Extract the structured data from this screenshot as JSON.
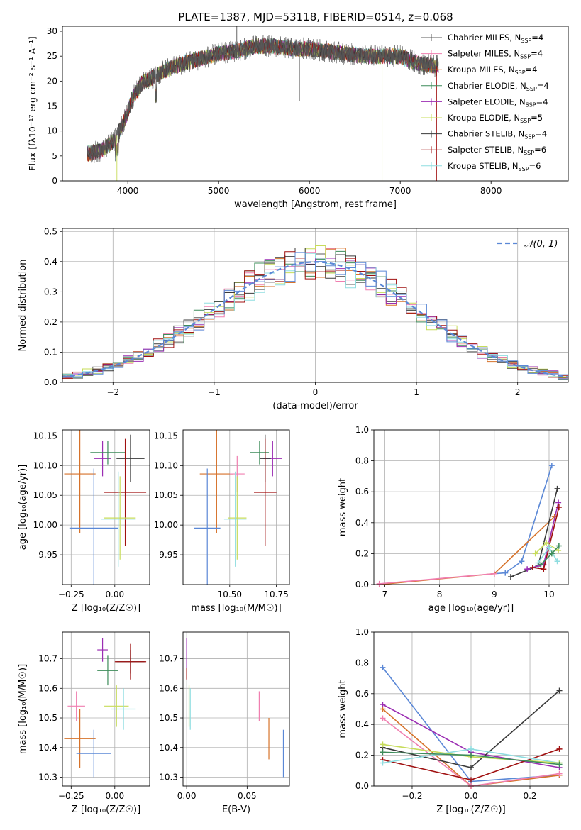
{
  "figure": {
    "title": "PLATE=1387, MJD=53118, FIBERID=0514, z=0.068"
  },
  "colors": {
    "chab_miles": "#5b5b5b",
    "salp_miles": "#f07fb0",
    "krou_miles": "#d6722a",
    "chab_elodie": "#3d8c5a",
    "salp_elodie": "#9b2db3",
    "krou_elodie": "#c7dc5a",
    "chab_stelib": "#3a3a3a",
    "salp_stelib": "#a01010",
    "krou_stelib": "#8fdde0",
    "blue": "#5b88d6",
    "grid": "#b0b0b0"
  },
  "chart_data": [
    {
      "id": "spectrum",
      "type": "line",
      "xlabel": "wavelength [Angstrom, rest frame]",
      "ylabel": "Flux [fλ10⁻¹⁷ erg cm⁻² s⁻¹ A⁻¹]",
      "xlim": [
        3280,
        8850
      ],
      "ylim": [
        0,
        31
      ],
      "xticks": [
        4000,
        5000,
        6000,
        7000,
        8000
      ],
      "yticks": [
        0,
        5,
        10,
        15,
        20,
        25,
        30
      ],
      "grid": false,
      "legend_position": "top-right",
      "continuum": {
        "x": [
          3550,
          3700,
          3850,
          3950,
          4050,
          4150,
          4300,
          4450,
          4600,
          4800,
          5000,
          5200,
          5400,
          5600,
          5800,
          6000,
          6200,
          6400,
          6600,
          6800,
          7000,
          7200,
          7400
        ],
        "y": [
          5.5,
          6,
          8,
          11.5,
          16.5,
          19.5,
          21,
          22.5,
          23.5,
          24.5,
          25.5,
          26,
          27,
          27,
          26.5,
          26.5,
          26,
          25.5,
          25,
          25,
          25,
          23.5,
          23
        ]
      },
      "series": [
        {
          "name": "Chabrier MILES, N_SSP=4",
          "label_main": "Chabrier MILES, N",
          "label_sub": "SSP",
          "label_end": "=4",
          "color_key": "chab_miles"
        },
        {
          "name": "Salpeter MILES, N_SSP=4",
          "label_main": "Salpeter MILES, N",
          "label_sub": "SSP",
          "label_end": "=4",
          "color_key": "salp_miles"
        },
        {
          "name": "Kroupa MILES, N_SSP=4",
          "label_main": "Kroupa MILES, N",
          "label_sub": "SSP",
          "label_end": "=4",
          "color_key": "krou_miles"
        },
        {
          "name": "Chabrier ELODIE, N_SSP=4",
          "label_main": "Chabrier ELODIE, N",
          "label_sub": "SSP",
          "label_end": "=4",
          "color_key": "chab_elodie"
        },
        {
          "name": "Salpeter ELODIE, N_SSP=4",
          "label_main": "Salpeter ELODIE, N",
          "label_sub": "SSP",
          "label_end": "=4",
          "color_key": "salp_elodie"
        },
        {
          "name": "Kroupa ELODIE, N_SSP=5",
          "label_main": "Kroupa ELODIE, N",
          "label_sub": "SSP",
          "label_end": "=5",
          "color_key": "krou_elodie"
        },
        {
          "name": "Chabrier STELIB, N_SSP=4",
          "label_main": "Chabrier STELIB, N",
          "label_sub": "SSP",
          "label_end": "=4",
          "color_key": "chab_stelib"
        },
        {
          "name": "Salpeter STELIB, N_SSP=6",
          "label_main": "Salpeter STELIB, N",
          "label_sub": "SSP",
          "label_end": "=6",
          "color_key": "salp_stelib"
        },
        {
          "name": "Kroupa STELIB, N_SSP=6",
          "label_main": "Kroupa STELIB, N",
          "label_sub": "SSP",
          "label_end": "=6",
          "color_key": "krou_stelib"
        }
      ]
    },
    {
      "id": "residuals",
      "type": "line",
      "xlabel": "(data-model)/error",
      "ylabel": "Normed distribution",
      "xlim": [
        -2.5,
        2.5
      ],
      "ylim": [
        0,
        0.51
      ],
      "xticks": [
        -2,
        -1,
        0,
        1,
        2
      ],
      "yticks": [
        0.0,
        0.1,
        0.2,
        0.3,
        0.4,
        0.5
      ],
      "grid": true,
      "legend_position": "top-right",
      "normal_label": "𝒩(0, 1)",
      "bin_width": 0.1
    },
    {
      "id": "age_vs_Z",
      "type": "scatter",
      "xlabel": "Z [log₁₀(Z/Z☉)]",
      "ylabel": "age  [log₁₀(age/yr)]",
      "xlim": [
        -0.3,
        0.2
      ],
      "ylim": [
        9.9,
        10.16
      ],
      "xticks": [
        -0.25,
        0.0
      ],
      "yticks": [
        9.95,
        10.0,
        10.05,
        10.1,
        10.15
      ],
      "grid": true,
      "points": [
        {
          "color_key": "krou_miles",
          "x": -0.2,
          "xerr": 0.09,
          "y": 10.086,
          "yerr": 0.1
        },
        {
          "color_key": "salp_elodie",
          "x": -0.07,
          "xerr": 0.05,
          "y": 10.112,
          "yerr": 0.03
        },
        {
          "color_key": "chab_elodie",
          "x": -0.04,
          "xerr": 0.1,
          "y": 10.122,
          "yerr": 0.02
        },
        {
          "color_key": "chab_stelib",
          "x": 0.09,
          "xerr": 0.08,
          "y": 10.112,
          "yerr": 0.04
        },
        {
          "color_key": "salp_stelib",
          "x": 0.06,
          "xerr": 0.12,
          "y": 10.055,
          "yerr": 0.09
        },
        {
          "color_key": "krou_elodie",
          "x": 0.03,
          "xerr": 0.09,
          "y": 10.012,
          "yerr": 0.07
        },
        {
          "color_key": "krou_stelib",
          "x": 0.02,
          "xerr": 0.1,
          "y": 10.01,
          "yerr": 0.08
        },
        {
          "color_key": "blue",
          "x": -0.12,
          "xerr": 0.14,
          "y": 9.995,
          "yerr": 0.1
        }
      ]
    },
    {
      "id": "age_vs_mass",
      "type": "scatter",
      "xlabel": "mass [log₁₀(M/M☉)]",
      "ylabel": "",
      "xlim": [
        10.25,
        10.82
      ],
      "ylim": [
        9.9,
        10.16
      ],
      "xticks": [
        10.5,
        10.75
      ],
      "yticks": [
        9.95,
        10.0,
        10.05,
        10.1,
        10.15
      ],
      "grid": true,
      "points": [
        {
          "color_key": "krou_miles",
          "x": 10.43,
          "xerr": 0.09,
          "y": 10.086,
          "yerr": 0.1
        },
        {
          "color_key": "salp_miles",
          "x": 10.54,
          "xerr": 0.04,
          "y": 10.086,
          "yerr": 0.03
        },
        {
          "color_key": "salp_elodie",
          "x": 10.73,
          "xerr": 0.05,
          "y": 10.112,
          "yerr": 0.03
        },
        {
          "color_key": "chab_elodie",
          "x": 10.66,
          "xerr": 0.05,
          "y": 10.122,
          "yerr": 0.02
        },
        {
          "color_key": "chab_stelib",
          "x": 10.69,
          "xerr": 0.03,
          "y": 10.112,
          "yerr": 0.04
        },
        {
          "color_key": "salp_stelib",
          "x": 10.69,
          "xerr": 0.06,
          "y": 10.055,
          "yerr": 0.09
        },
        {
          "color_key": "krou_elodie",
          "x": 10.54,
          "xerr": 0.05,
          "y": 10.012,
          "yerr": 0.07
        },
        {
          "color_key": "krou_stelib",
          "x": 10.53,
          "xerr": 0.06,
          "y": 10.01,
          "yerr": 0.08
        },
        {
          "color_key": "blue",
          "x": 10.38,
          "xerr": 0.07,
          "y": 9.995,
          "yerr": 0.1
        }
      ]
    },
    {
      "id": "mass_weight_vs_age",
      "type": "line",
      "xlabel": "age  [log₁₀(age/yr)]",
      "ylabel": "mass weight",
      "xlim": [
        6.8,
        10.35
      ],
      "ylim": [
        0,
        1.0
      ],
      "xticks": [
        7,
        8,
        9,
        10
      ],
      "yticks": [
        0.0,
        0.2,
        0.4,
        0.6,
        0.8,
        1.0
      ],
      "grid": true,
      "series": [
        {
          "color_key": "blue",
          "x": [
            9.0,
            9.2,
            9.5,
            10.05
          ],
          "y": [
            0.07,
            0.075,
            0.15,
            0.77
          ]
        },
        {
          "color_key": "krou_miles",
          "x": [
            6.9,
            9.0,
            10.1
          ],
          "y": [
            0.0,
            0.07,
            0.44
          ]
        },
        {
          "color_key": "chab_stelib",
          "x": [
            9.3,
            9.8,
            10.15
          ],
          "y": [
            0.05,
            0.12,
            0.62
          ]
        },
        {
          "color_key": "salp_elodie",
          "x": [
            9.6,
            9.9,
            10.17
          ],
          "y": [
            0.1,
            0.13,
            0.53
          ]
        },
        {
          "color_key": "salp_stelib",
          "x": [
            9.7,
            9.9,
            10.18
          ],
          "y": [
            0.11,
            0.1,
            0.5
          ]
        },
        {
          "color_key": "krou_elodie",
          "x": [
            9.75,
            9.95,
            10.17
          ],
          "y": [
            0.2,
            0.27,
            0.22
          ]
        },
        {
          "color_key": "krou_stelib",
          "x": [
            9.8,
            10.0,
            10.15
          ],
          "y": [
            0.14,
            0.24,
            0.15
          ]
        },
        {
          "color_key": "chab_elodie",
          "x": [
            9.85,
            10.05,
            10.18
          ],
          "y": [
            0.13,
            0.2,
            0.25
          ]
        },
        {
          "color_key": "salp_miles",
          "x": [
            6.9,
            9.0
          ],
          "y": [
            0.005,
            0.07
          ]
        }
      ]
    },
    {
      "id": "mass_vs_Z",
      "type": "scatter",
      "xlabel": "Z [log₁₀(Z/Z☉)]",
      "ylabel": "mass [log₁₀(M/M☉)]",
      "xlim": [
        -0.3,
        0.2
      ],
      "ylim": [
        10.27,
        10.79
      ],
      "xticks": [
        -0.25,
        0.0
      ],
      "yticks": [
        10.3,
        10.4,
        10.5,
        10.6,
        10.7
      ],
      "grid": true,
      "points": [
        {
          "color_key": "salp_miles",
          "x": -0.22,
          "xerr": 0.05,
          "y": 10.54,
          "yerr": 0.05
        },
        {
          "color_key": "krou_miles",
          "x": -0.2,
          "xerr": 0.09,
          "y": 10.43,
          "yerr": 0.1
        },
        {
          "color_key": "blue",
          "x": -0.12,
          "xerr": 0.1,
          "y": 10.38,
          "yerr": 0.08
        },
        {
          "color_key": "salp_elodie",
          "x": -0.07,
          "xerr": 0.03,
          "y": 10.73,
          "yerr": 0.04
        },
        {
          "color_key": "chab_elodie",
          "x": -0.04,
          "xerr": 0.06,
          "y": 10.66,
          "yerr": 0.05
        },
        {
          "color_key": "chab_stelib",
          "x": 0.09,
          "xerr": 0.08,
          "y": 10.69,
          "yerr": 0.04
        },
        {
          "color_key": "salp_stelib",
          "x": 0.09,
          "xerr": 0.09,
          "y": 10.69,
          "yerr": 0.06
        },
        {
          "color_key": "krou_elodie",
          "x": 0.01,
          "xerr": 0.07,
          "y": 10.54,
          "yerr": 0.07
        },
        {
          "color_key": "krou_stelib",
          "x": 0.05,
          "xerr": 0.07,
          "y": 10.53,
          "yerr": 0.07
        }
      ]
    },
    {
      "id": "mass_vs_ebv",
      "type": "scatter",
      "xlabel": "E(B-V)",
      "ylabel": "",
      "xlim": [
        -0.003,
        0.085
      ],
      "ylim": [
        10.27,
        10.79
      ],
      "xticks": [
        0.0,
        0.05
      ],
      "yticks": [
        10.3,
        10.4,
        10.5,
        10.6,
        10.7
      ],
      "grid": true,
      "points": [
        {
          "color_key": "salp_stelib",
          "x": 0.0,
          "xerr": 0.0,
          "y": 10.69,
          "yerr": 0.06
        },
        {
          "color_key": "salp_elodie",
          "x": 0.0,
          "xerr": 0.0,
          "y": 10.72,
          "yerr": 0.05
        },
        {
          "color_key": "krou_elodie",
          "x": 0.002,
          "xerr": 0.0,
          "y": 10.54,
          "yerr": 0.07
        },
        {
          "color_key": "krou_stelib",
          "x": 0.003,
          "xerr": 0.0,
          "y": 10.53,
          "yerr": 0.07
        },
        {
          "color_key": "salp_miles",
          "x": 0.06,
          "xerr": 0.0,
          "y": 10.54,
          "yerr": 0.05
        },
        {
          "color_key": "krou_miles",
          "x": 0.068,
          "xerr": 0.0,
          "y": 10.43,
          "yerr": 0.07
        },
        {
          "color_key": "blue",
          "x": 0.08,
          "xerr": 0.0,
          "y": 10.38,
          "yerr": 0.08
        }
      ]
    },
    {
      "id": "mass_weight_vs_Z",
      "type": "line",
      "xlabel": "Z [log₁₀(Z/Z☉)]",
      "ylabel": "mass weight",
      "xlim": [
        -0.33,
        0.33
      ],
      "ylim": [
        0,
        1.0
      ],
      "xticks": [
        -0.2,
        0.0,
        0.2
      ],
      "yticks": [
        0.0,
        0.2,
        0.4,
        0.6,
        0.8,
        1.0
      ],
      "grid": true,
      "series": [
        {
          "color_key": "blue",
          "x": [
            -0.3,
            0.0,
            0.3
          ],
          "y": [
            0.77,
            0.03,
            0.07
          ]
        },
        {
          "color_key": "krou_miles",
          "x": [
            -0.3,
            0.0,
            0.3
          ],
          "y": [
            0.5,
            0.0,
            0.07
          ]
        },
        {
          "color_key": "salp_miles",
          "x": [
            -0.3,
            0.0,
            0.3
          ],
          "y": [
            0.44,
            0.0,
            0.08
          ]
        },
        {
          "color_key": "salp_elodie",
          "x": [
            -0.3,
            0.0,
            0.3
          ],
          "y": [
            0.53,
            0.22,
            0.12
          ]
        },
        {
          "color_key": "chab_stelib",
          "x": [
            -0.3,
            0.0,
            0.3
          ],
          "y": [
            0.25,
            0.12,
            0.62
          ]
        },
        {
          "color_key": "salp_stelib",
          "x": [
            -0.3,
            0.0,
            0.3
          ],
          "y": [
            0.17,
            0.04,
            0.24
          ]
        },
        {
          "color_key": "krou_stelib",
          "x": [
            -0.3,
            0.0,
            0.3
          ],
          "y": [
            0.15,
            0.24,
            0.15
          ]
        },
        {
          "color_key": "krou_elodie",
          "x": [
            -0.3,
            0.0,
            0.3
          ],
          "y": [
            0.27,
            0.19,
            0.15
          ]
        },
        {
          "color_key": "chab_elodie",
          "x": [
            -0.3,
            0.0,
            0.3
          ],
          "y": [
            0.22,
            0.2,
            0.14
          ]
        }
      ]
    }
  ]
}
